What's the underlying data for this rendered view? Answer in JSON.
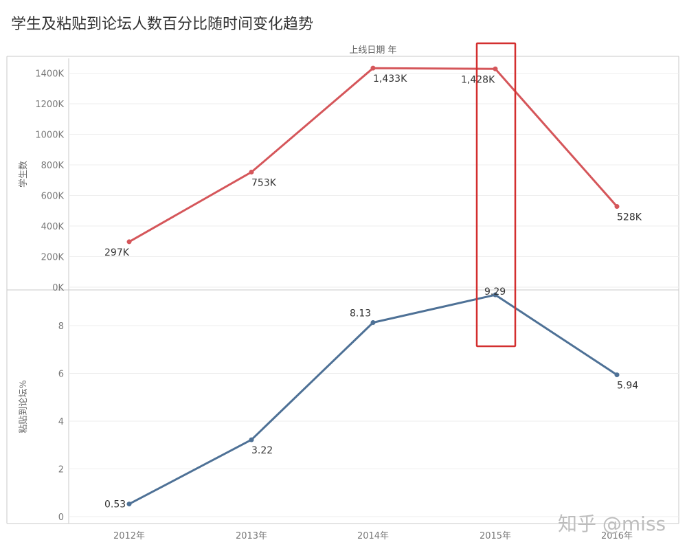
{
  "title": "学生及粘贴到论坛人数百分比随时间变化趋势",
  "header_label": "上线日期 年",
  "watermark": "知乎 @miss",
  "colors": {
    "students_line": "#d5565a",
    "paste_line": "#4e7196",
    "highlight_box": "#d32f2f",
    "grid": "#eeeeee",
    "axis": "#c8c8c8"
  },
  "chart_data": [
    {
      "type": "line",
      "ylabel": "学生数",
      "categories": [
        "2012年",
        "2013年",
        "2014年",
        "2015年",
        "2016年"
      ],
      "values": [
        297,
        753,
        1433,
        1428,
        528
      ],
      "data_labels": [
        "297K",
        "753K",
        "1,433K",
        "1,428K",
        "528K"
      ],
      "yticks": [
        0,
        200,
        400,
        600,
        800,
        1000,
        1200,
        1400
      ],
      "ytick_labels": [
        "0K",
        "200K",
        "400K",
        "600K",
        "800K",
        "1000K",
        "1200K",
        "1400K"
      ],
      "ylim": [
        0,
        1500
      ],
      "unit": "K",
      "grid": true
    },
    {
      "type": "line",
      "ylabel": "粘贴到论坛%",
      "categories": [
        "2012年",
        "2013年",
        "2014年",
        "2015年",
        "2016年"
      ],
      "values": [
        0.53,
        3.22,
        8.13,
        9.29,
        5.94
      ],
      "data_labels": [
        "0.53",
        "3.22",
        "8.13",
        "9.29",
        "5.94"
      ],
      "yticks": [
        0,
        2,
        4,
        6,
        8
      ],
      "ytick_labels": [
        "0",
        "2",
        "4",
        "6",
        "8"
      ],
      "ylim": [
        -0.3,
        9.6
      ],
      "grid": true
    }
  ],
  "highlight": {
    "category": "2015年"
  }
}
